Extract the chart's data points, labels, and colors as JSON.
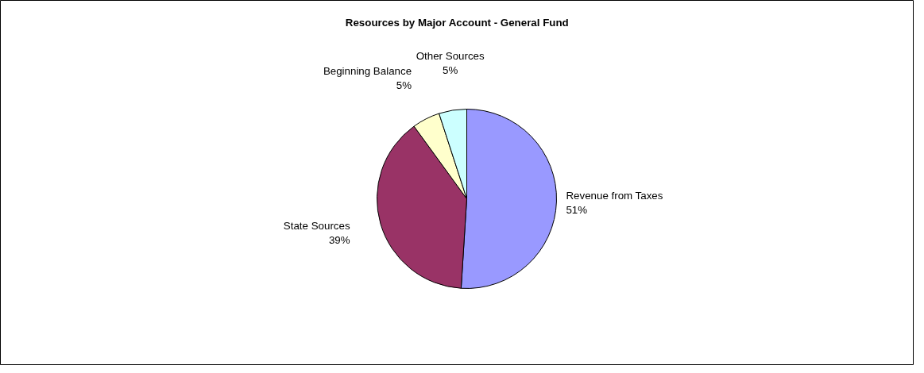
{
  "chart_data": {
    "type": "pie",
    "title": "Resources by Major Account - General Fund",
    "categories": [
      "Revenue from Taxes",
      "State Sources",
      "Beginning Balance",
      "Other Sources"
    ],
    "values": [
      51,
      39,
      5,
      5
    ],
    "value_labels": [
      "51%",
      "39%",
      "5%",
      "5%"
    ],
    "colors": [
      "#9999ff",
      "#993366",
      "#ffffcc",
      "#ccffff"
    ]
  }
}
